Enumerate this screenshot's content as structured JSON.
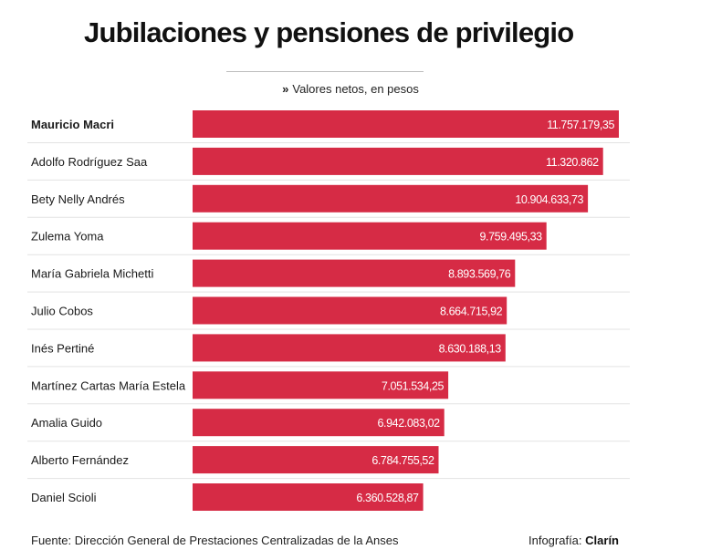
{
  "header": {
    "title": "Jubilaciones y pensiones de privilegio",
    "subtitle_bullet": "»",
    "subtitle": "Valores netos, en pesos"
  },
  "footer": {
    "source": "Fuente: Dirección General de Prestaciones Centralizadas de la Anses",
    "credit_prefix": "Infografía:",
    "credit_brand": "Clarín"
  },
  "colors": {
    "bar": "#d62b45",
    "label_text": "#ffffff",
    "row_divider": "#e3e3e3"
  },
  "chart_data": {
    "type": "bar",
    "orientation": "horizontal",
    "title": "Jubilaciones y pensiones de privilegio",
    "subtitle": "Valores netos, en pesos",
    "categories": [
      "Mauricio Macri",
      "Adolfo Rodríguez Saa",
      "Bety Nelly Andrés",
      "Zulema Yoma",
      "María Gabriela Michetti",
      "Julio Cobos",
      "Inés Pertiné",
      "Martínez Cartas María Estela",
      "Amalia Guido",
      "Alberto Fernández",
      "Daniel Scioli"
    ],
    "values": [
      11757179.35,
      11320862,
      10904633.73,
      9759495.33,
      8893569.76,
      8664715.92,
      8630188.13,
      7051534.25,
      6942083.02,
      6784755.52,
      6360528.87
    ],
    "value_labels": [
      "11.757.179,35",
      "11.320.862",
      "10.904.633,73",
      "9.759.495,33",
      "8.893.569,76",
      "8.664.715,92",
      "8.630.188,13",
      "7.051.534,25",
      "6.942.083,02",
      "6.784.755,52",
      "6.360.528,87"
    ],
    "bold_categories": [
      "Mauricio Macri"
    ],
    "xlim": [
      0,
      11757179.35
    ],
    "grid": false,
    "legend": "none"
  }
}
